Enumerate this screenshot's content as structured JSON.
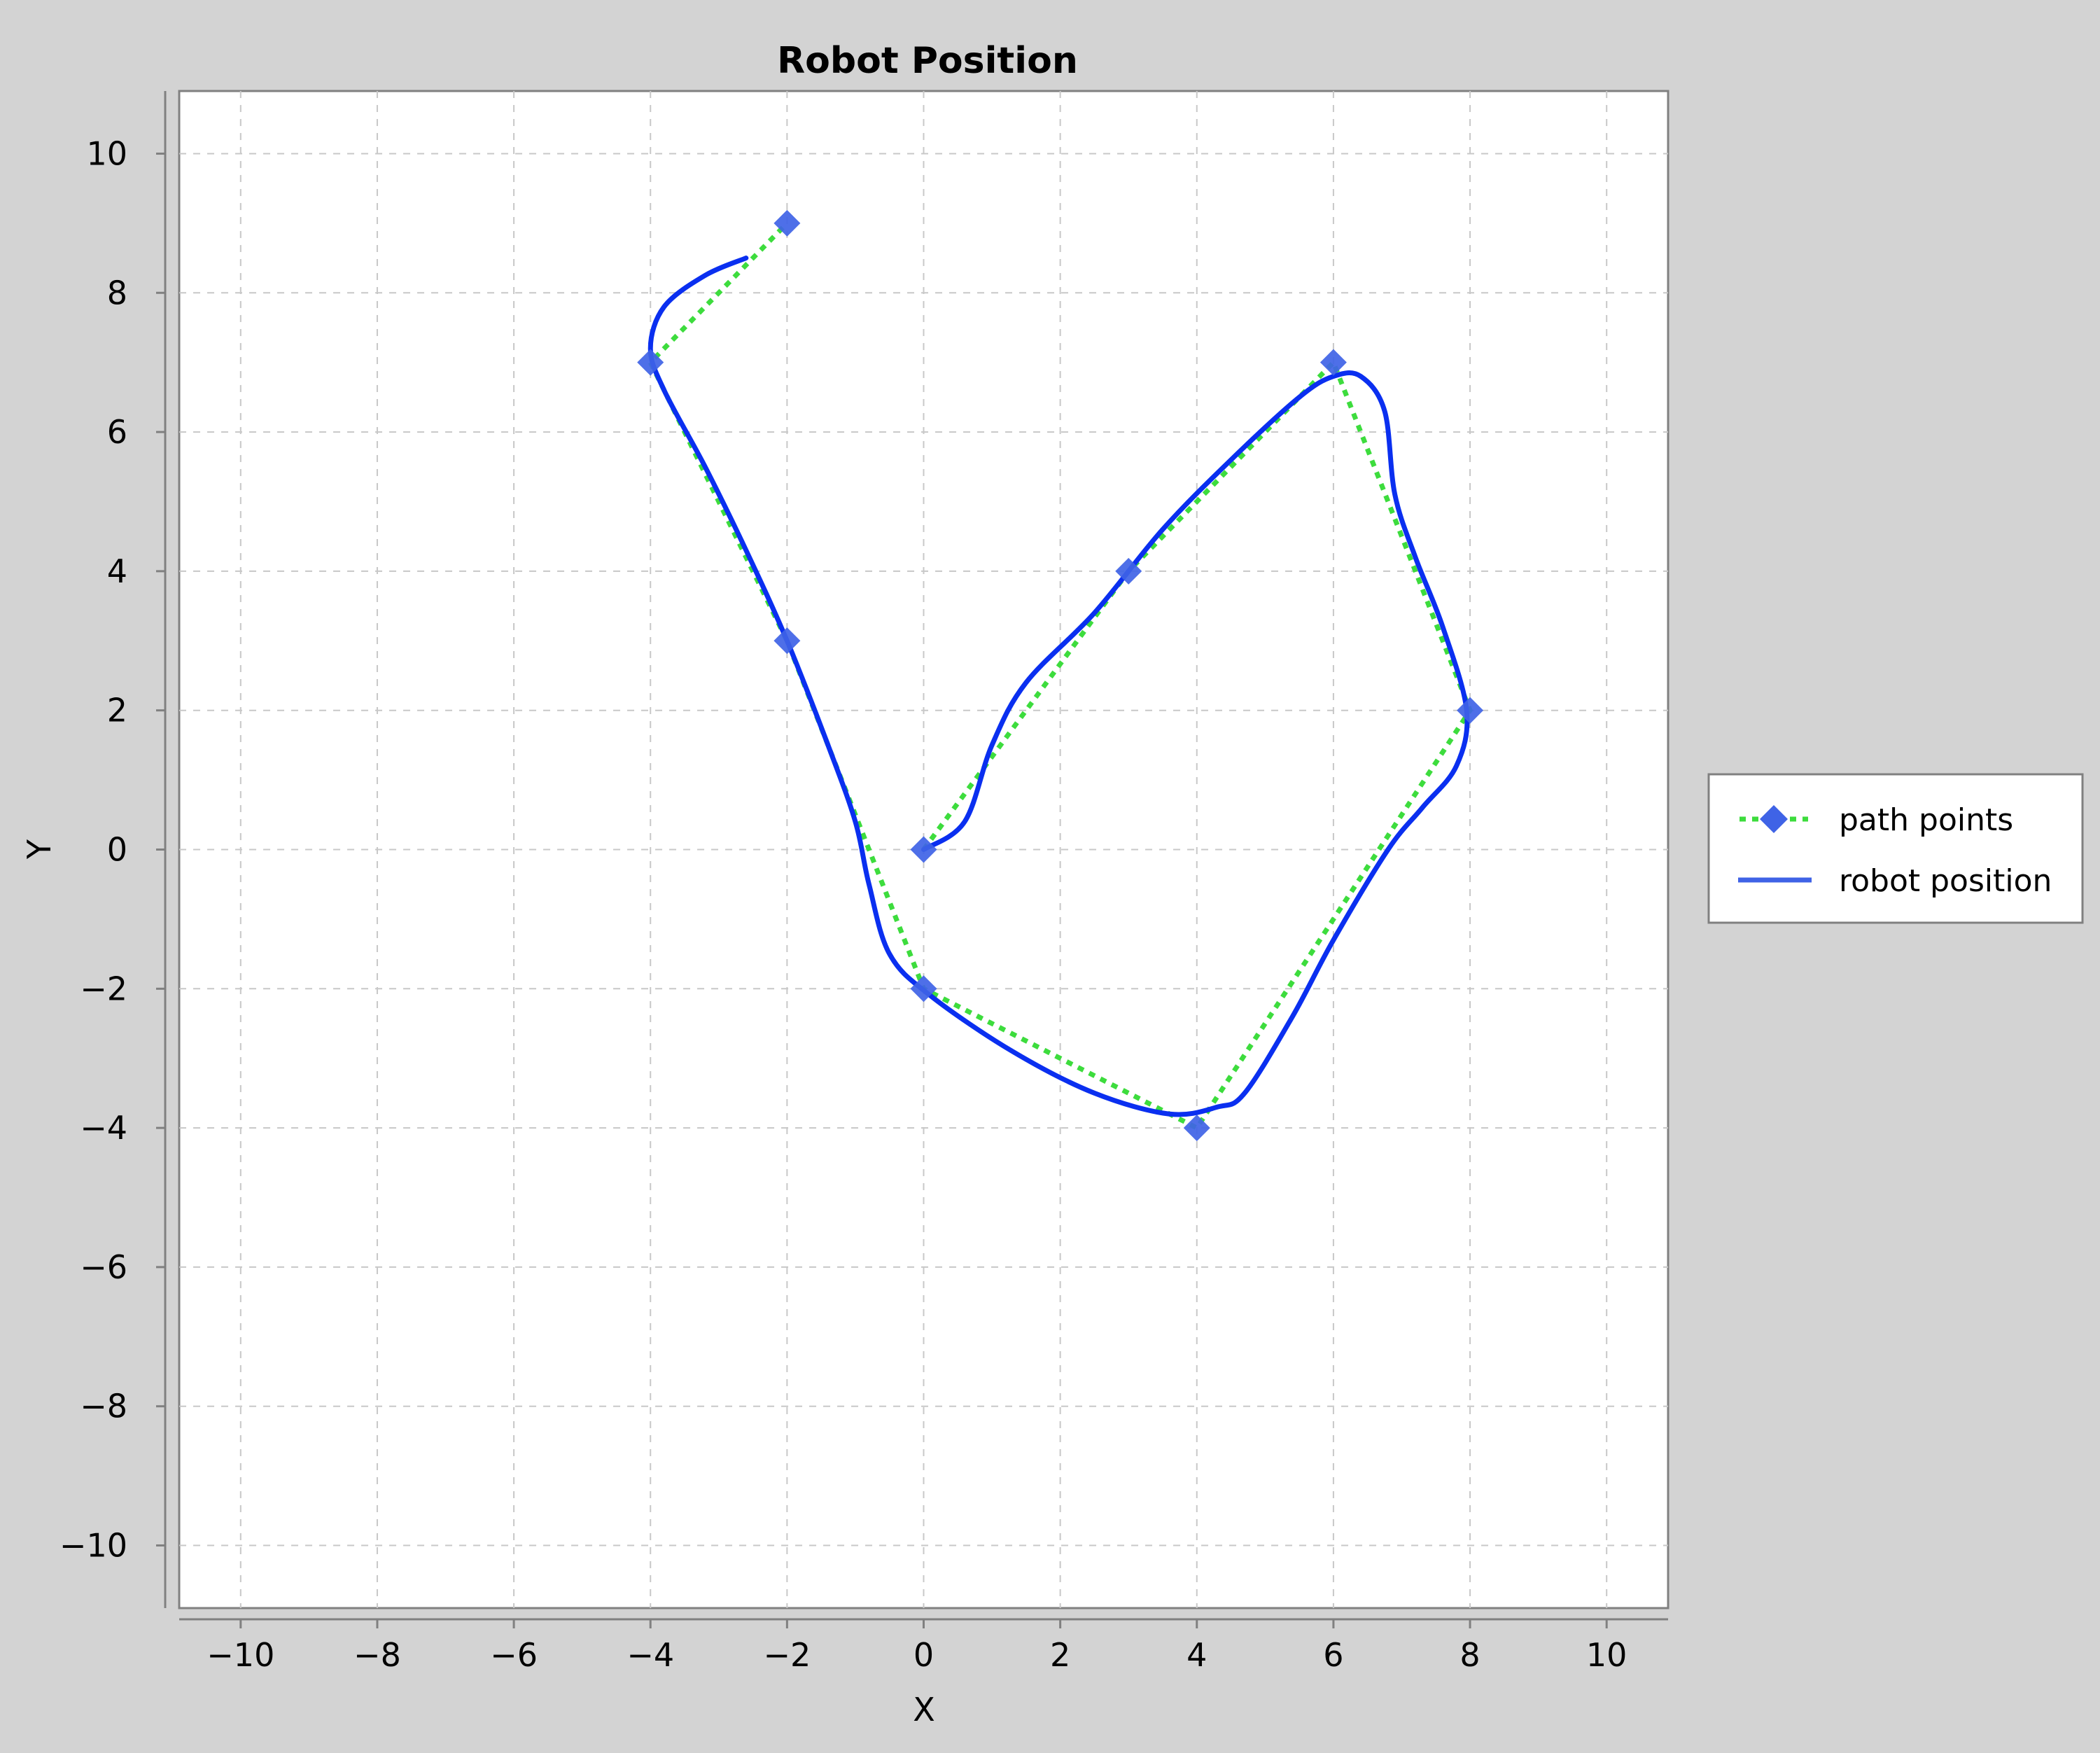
{
  "chart_data": {
    "type": "line",
    "title": "Robot Position",
    "xlabel": "X",
    "ylabel": "Y",
    "xlim": [
      -10.9,
      10.9
    ],
    "ylim": [
      -10.9,
      10.9
    ],
    "xticks": [
      -10,
      -8,
      -6,
      -4,
      -2,
      0,
      2,
      4,
      6,
      8,
      10
    ],
    "yticks": [
      -10,
      -8,
      -6,
      -4,
      -2,
      0,
      2,
      4,
      6,
      8,
      10
    ],
    "x_tick_labels": [
      "−10",
      "−8",
      "−6",
      "−4",
      "−2",
      "0",
      "2",
      "4",
      "6",
      "8",
      "10"
    ],
    "y_tick_labels": [
      "−10",
      "−8",
      "−6",
      "−4",
      "−2",
      "0",
      "2",
      "4",
      "6",
      "8",
      "10"
    ],
    "grid": true,
    "legend_position": "right",
    "series": [
      {
        "name": "path points",
        "style": "dotted-with-diamond-markers",
        "line_color": "#3ddc3d",
        "marker_color": "#3f63e6",
        "x": [
          0,
          3,
          6,
          8,
          4,
          0,
          -2,
          -4,
          -2
        ],
        "y": [
          0,
          4,
          7,
          2,
          -4,
          -2,
          3,
          7,
          9
        ]
      },
      {
        "name": "robot position",
        "style": "solid",
        "line_color": "#0a2ff0",
        "x": [
          0,
          0.6,
          1.0,
          1.5,
          2.5,
          3.5,
          4.5,
          5.5,
          6.0,
          6.4,
          6.75,
          6.9,
          7.2,
          7.6,
          7.95,
          7.8,
          7.3,
          6.8,
          6.0,
          5.4,
          4.7,
          4.3,
          3.6,
          2.5,
          1.3,
          0.1,
          -0.5,
          -0.8,
          -1.0,
          -1.4,
          -2.0,
          -2.6,
          -3.2,
          -3.8,
          -4.0,
          -3.8,
          -3.2,
          -2.6
        ],
        "y": [
          0,
          0.4,
          1.5,
          2.4,
          3.4,
          4.6,
          5.6,
          6.5,
          6.8,
          6.8,
          6.3,
          5.1,
          4.2,
          3.2,
          2.0,
          1.2,
          0.6,
          0.0,
          -1.3,
          -2.4,
          -3.5,
          -3.7,
          -3.8,
          -3.5,
          -2.9,
          -2.1,
          -1.5,
          -0.5,
          0.4,
          1.5,
          3.0,
          4.3,
          5.5,
          6.6,
          7.2,
          7.8,
          8.25,
          8.5
        ]
      }
    ]
  }
}
